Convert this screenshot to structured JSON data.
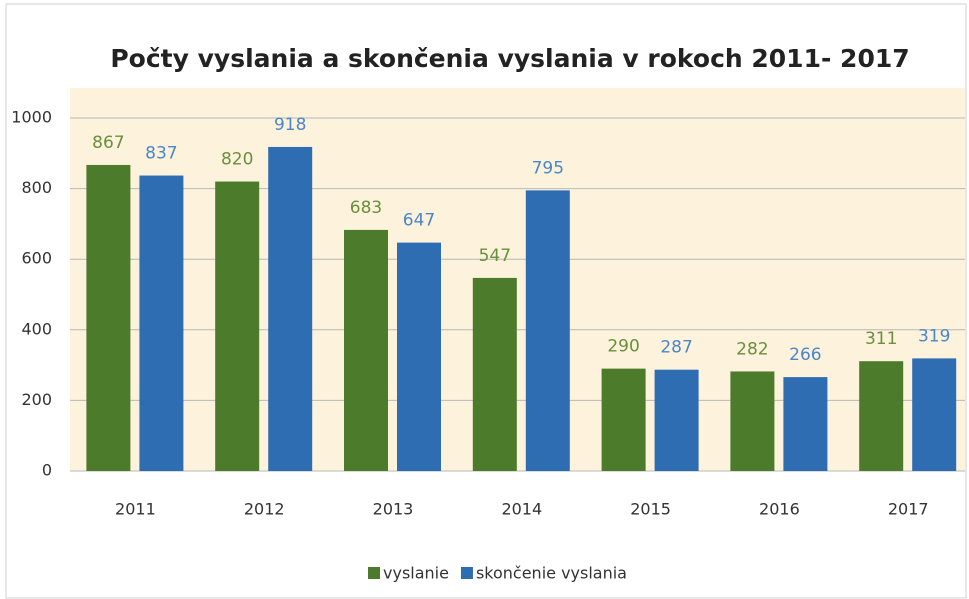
{
  "chart_data": {
    "type": "bar",
    "title": "Počty vyslania a skončenia vyslania v rokoch 2011- 2017",
    "categories": [
      "2011",
      "2012",
      "2013",
      "2014",
      "2015",
      "2016",
      "2017"
    ],
    "series": [
      {
        "name": "vyslanie",
        "color": "#4b7b2b",
        "values": [
          867,
          820,
          683,
          547,
          290,
          282,
          311
        ]
      },
      {
        "name": "skončenie vyslania",
        "color": "#2f6db3",
        "values": [
          837,
          918,
          647,
          795,
          287,
          266,
          319
        ]
      }
    ],
    "ylim": [
      0,
      1000
    ],
    "yticks": [
      0,
      200,
      400,
      600,
      800,
      1000
    ],
    "grid": true,
    "legend": "bottom"
  }
}
